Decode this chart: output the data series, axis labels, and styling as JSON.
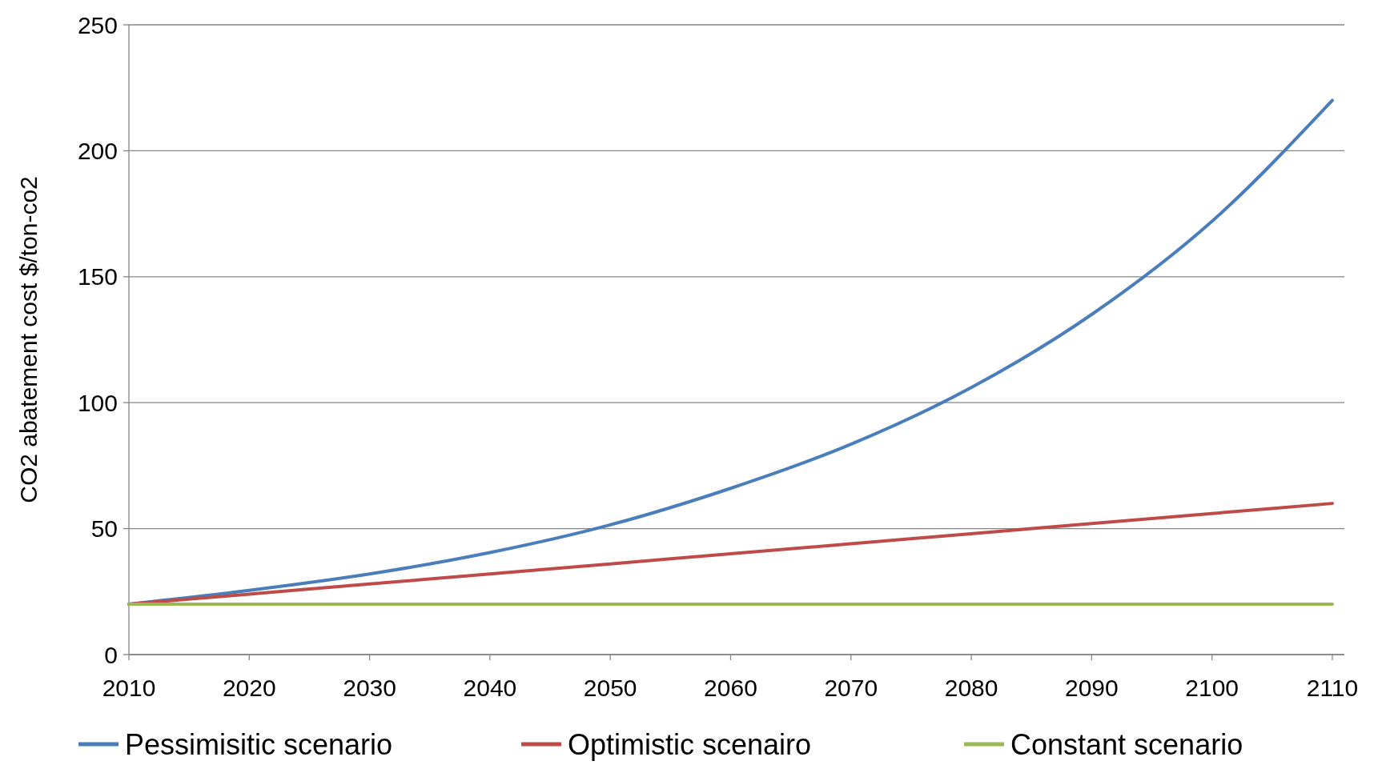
{
  "chart_data": {
    "type": "line",
    "ylabel": "CO2 abatement cost $/ton-co2",
    "x": [
      2010,
      2020,
      2030,
      2040,
      2050,
      2060,
      2070,
      2080,
      2090,
      2100,
      2110
    ],
    "xlim": [
      2010,
      2111
    ],
    "xticks": [
      2010,
      2020,
      2030,
      2040,
      2050,
      2060,
      2070,
      2080,
      2090,
      2100,
      2110
    ],
    "ylim": [
      0,
      250
    ],
    "yticks": [
      0,
      50,
      100,
      150,
      200,
      250
    ],
    "grid": "y",
    "legend": "bottom",
    "marker": "none",
    "line_style": "solid",
    "series": [
      {
        "name": "Pessimisitic scenario",
        "color": "#4a7ebb",
        "values": [
          20,
          25.5,
          32,
          40.5,
          51.5,
          66,
          83.5,
          106,
          135,
          172,
          220
        ]
      },
      {
        "name": "Optimistic scenairo",
        "color": "#be4b48",
        "values": [
          20,
          24,
          28,
          32,
          36,
          40,
          44,
          48,
          52,
          56,
          60
        ]
      },
      {
        "name": "Constant scenario",
        "color": "#98b954",
        "values": [
          20,
          20,
          20,
          20,
          20,
          20,
          20,
          20,
          20,
          20,
          20
        ]
      }
    ]
  }
}
